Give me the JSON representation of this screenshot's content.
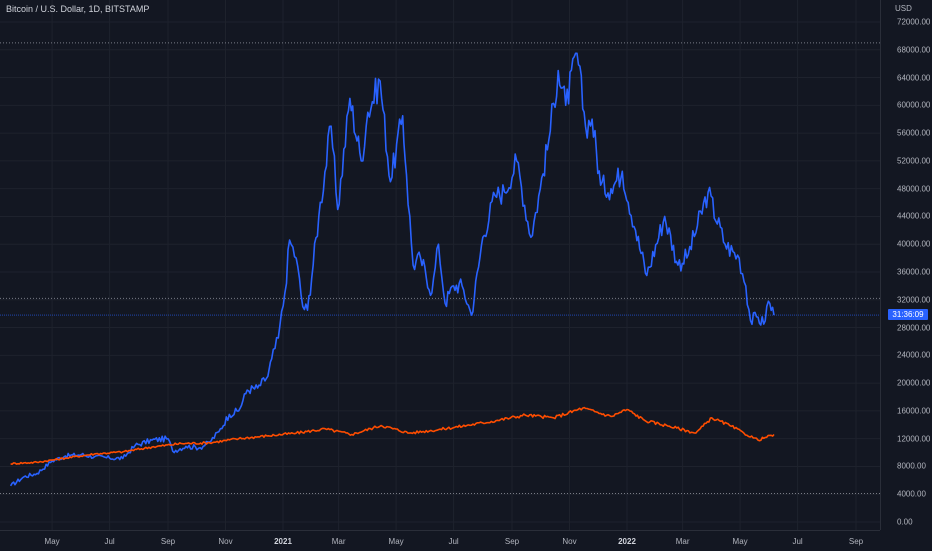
{
  "header": {
    "symbol_title": "Bitcoin / U.S. Dollar, 1D, BITSTAMP"
  },
  "price_axis": {
    "currency": "USD",
    "labels": [
      "72000.00",
      "68000.00",
      "64000.00",
      "60000.00",
      "56000.00",
      "52000.00",
      "48000.00",
      "44000.00",
      "40000.00",
      "36000.00",
      "32000.00",
      "28000.00",
      "24000.00",
      "20000.00",
      "16000.00",
      "12000.00",
      "8000.00",
      "4000.00",
      "0.00"
    ],
    "last_price_badge": "31:36:09"
  },
  "time_axis": {
    "labels": [
      "May",
      "Jul",
      "Sep",
      "Nov",
      "2021",
      "Mar",
      "May",
      "Jul",
      "Sep",
      "Nov",
      "2022",
      "Mar",
      "May",
      "Jul",
      "Sep"
    ]
  },
  "colors": {
    "background": "#131722",
    "btc_line": "#2962ff",
    "comparison_line": "#ff4d00",
    "grid": "#1e222d",
    "price_line_dotted": "#787b86"
  },
  "chart_data": {
    "type": "line",
    "title": "Bitcoin / U.S. Dollar, 1D, BITSTAMP",
    "ylabel": "USD",
    "ylim": [
      0,
      72000
    ],
    "xlim": [
      "2020-03-18",
      "2022-09-30"
    ],
    "grid": true,
    "series": [
      {
        "color": "#2962ff",
        "points": [
          [
            "2020-03-18",
            5200
          ],
          [
            "2020-04-01",
            6500
          ],
          [
            "2020-04-15",
            7000
          ],
          [
            "2020-05-01",
            8800
          ],
          [
            "2020-05-15",
            9500
          ],
          [
            "2020-06-01",
            9700
          ],
          [
            "2020-06-15",
            9400
          ],
          [
            "2020-07-01",
            9200
          ],
          [
            "2020-07-15",
            9150
          ],
          [
            "2020-07-28",
            11000
          ],
          [
            "2020-08-15",
            11800
          ],
          [
            "2020-09-01",
            12000
          ],
          [
            "2020-09-06",
            10200
          ],
          [
            "2020-09-20",
            10900
          ],
          [
            "2020-10-05",
            10700
          ],
          [
            "2020-10-15",
            11500
          ],
          [
            "2020-10-25",
            13000
          ],
          [
            "2020-11-05",
            15500
          ],
          [
            "2020-11-15",
            16000
          ],
          [
            "2020-11-24",
            19000
          ],
          [
            "2020-12-05",
            19300
          ],
          [
            "2020-12-16",
            21000
          ],
          [
            "2020-12-20",
            23500
          ],
          [
            "2020-12-27",
            26500
          ],
          [
            "2021-01-03",
            33000
          ],
          [
            "2021-01-08",
            40600
          ],
          [
            "2021-01-15",
            38000
          ],
          [
            "2021-01-22",
            31000
          ],
          [
            "2021-01-27",
            30500
          ],
          [
            "2021-02-08",
            44000
          ],
          [
            "2021-02-21",
            57000
          ],
          [
            "2021-02-28",
            45000
          ],
          [
            "2021-03-13",
            61000
          ],
          [
            "2021-03-25",
            52000
          ],
          [
            "2021-04-01",
            59000
          ],
          [
            "2021-04-14",
            63500
          ],
          [
            "2021-04-25",
            49000
          ],
          [
            "2021-05-08",
            58500
          ],
          [
            "2021-05-12",
            50000
          ],
          [
            "2021-05-19",
            37000
          ],
          [
            "2021-05-27",
            38000
          ],
          [
            "2021-06-08",
            33000
          ],
          [
            "2021-06-15",
            40000
          ],
          [
            "2021-06-22",
            31500
          ],
          [
            "2021-07-01",
            34000
          ],
          [
            "2021-07-10",
            34000
          ],
          [
            "2021-07-20",
            29800
          ],
          [
            "2021-08-01",
            41000
          ],
          [
            "2021-08-14",
            47000
          ],
          [
            "2021-08-24",
            47500
          ],
          [
            "2021-09-06",
            52000
          ],
          [
            "2021-09-21",
            41000
          ],
          [
            "2021-10-01",
            48000
          ],
          [
            "2021-10-10",
            55000
          ],
          [
            "2021-10-20",
            65000
          ],
          [
            "2021-10-28",
            60000
          ],
          [
            "2021-11-09",
            67500
          ],
          [
            "2021-11-18",
            57000
          ],
          [
            "2021-11-25",
            58000
          ],
          [
            "2021-12-04",
            48500
          ],
          [
            "2021-12-15",
            48000
          ],
          [
            "2021-12-27",
            50500
          ],
          [
            "2022-01-10",
            42000
          ],
          [
            "2022-01-22",
            35500
          ],
          [
            "2022-02-10",
            44000
          ],
          [
            "2022-02-24",
            37000
          ],
          [
            "2022-03-07",
            38500
          ],
          [
            "2022-03-28",
            47500
          ],
          [
            "2022-04-15",
            40000
          ],
          [
            "2022-04-30",
            38000
          ],
          [
            "2022-05-07",
            34000
          ],
          [
            "2022-05-12",
            29000
          ],
          [
            "2022-05-20",
            29500
          ],
          [
            "2022-05-26",
            28500
          ],
          [
            "2022-05-31",
            31800
          ],
          [
            "2022-06-06",
            29800
          ]
        ]
      },
      {
        "color": "#ff4d00",
        "points": [
          [
            "2020-03-18",
            8400
          ],
          [
            "2020-04-15",
            8600
          ],
          [
            "2020-05-15",
            9200
          ],
          [
            "2020-06-15",
            9800
          ],
          [
            "2020-07-15",
            10100
          ],
          [
            "2020-08-15",
            10800
          ],
          [
            "2020-09-15",
            11300
          ],
          [
            "2020-10-15",
            11400
          ],
          [
            "2020-11-15",
            12000
          ],
          [
            "2020-12-15",
            12400
          ],
          [
            "2021-01-15",
            12800
          ],
          [
            "2021-02-15",
            13400
          ],
          [
            "2021-03-15",
            12600
          ],
          [
            "2021-04-15",
            13900
          ],
          [
            "2021-05-15",
            12800
          ],
          [
            "2021-06-15",
            13300
          ],
          [
            "2021-07-15",
            13900
          ],
          [
            "2021-08-15",
            14600
          ],
          [
            "2021-09-15",
            15400
          ],
          [
            "2021-10-15",
            15000
          ],
          [
            "2021-11-15",
            16400
          ],
          [
            "2021-12-15",
            15200
          ],
          [
            "2022-01-01",
            16200
          ],
          [
            "2022-01-20",
            14600
          ],
          [
            "2022-02-15",
            13800
          ],
          [
            "2022-03-15",
            12800
          ],
          [
            "2022-04-01",
            15000
          ],
          [
            "2022-04-20",
            13900
          ],
          [
            "2022-05-05",
            12800
          ],
          [
            "2022-05-20",
            11800
          ],
          [
            "2022-06-06",
            12600
          ]
        ]
      }
    ],
    "reference_lines": [
      69000,
      32200,
      4100
    ]
  }
}
